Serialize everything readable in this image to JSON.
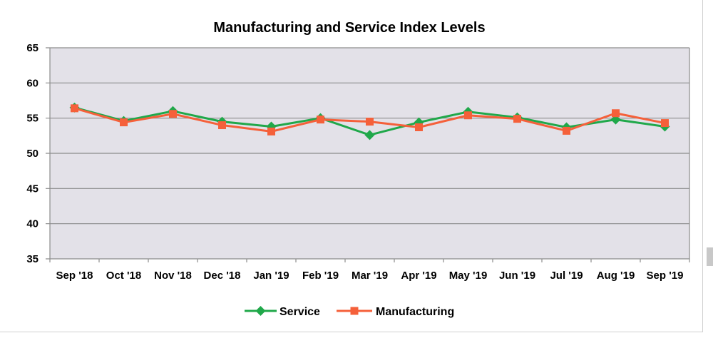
{
  "chart_data": {
    "type": "line",
    "title": "Manufacturing and Service Index Levels",
    "categories": [
      "Sep  '18",
      "Oct '18",
      "Nov '18",
      "Dec '18",
      "Jan '19",
      "Feb '19",
      "Mar '19",
      "Apr '19",
      "May '19",
      "Jun '19",
      "Jul '19",
      "Aug '19",
      "Sep '19"
    ],
    "ylim": [
      35,
      65
    ],
    "yticks": [
      "35",
      "40",
      "45",
      "50",
      "55",
      "60",
      "65"
    ],
    "grid": true,
    "legend_position": "bottom",
    "series": [
      {
        "name": "Service",
        "color": "#20a84a",
        "marker": "diamond",
        "values": [
          56.5,
          54.6,
          56.0,
          54.5,
          53.8,
          55.0,
          52.6,
          54.4,
          55.9,
          55.1,
          53.7,
          54.8,
          53.8
        ]
      },
      {
        "name": "Manufacturing",
        "color": "#f5603a",
        "marker": "square",
        "values": [
          56.4,
          54.4,
          55.6,
          54.0,
          53.1,
          54.8,
          54.5,
          53.7,
          55.4,
          54.9,
          53.2,
          55.7,
          54.3
        ]
      }
    ],
    "plot_background": "#e3e1e8",
    "grid_color": "#8c8c8c"
  }
}
